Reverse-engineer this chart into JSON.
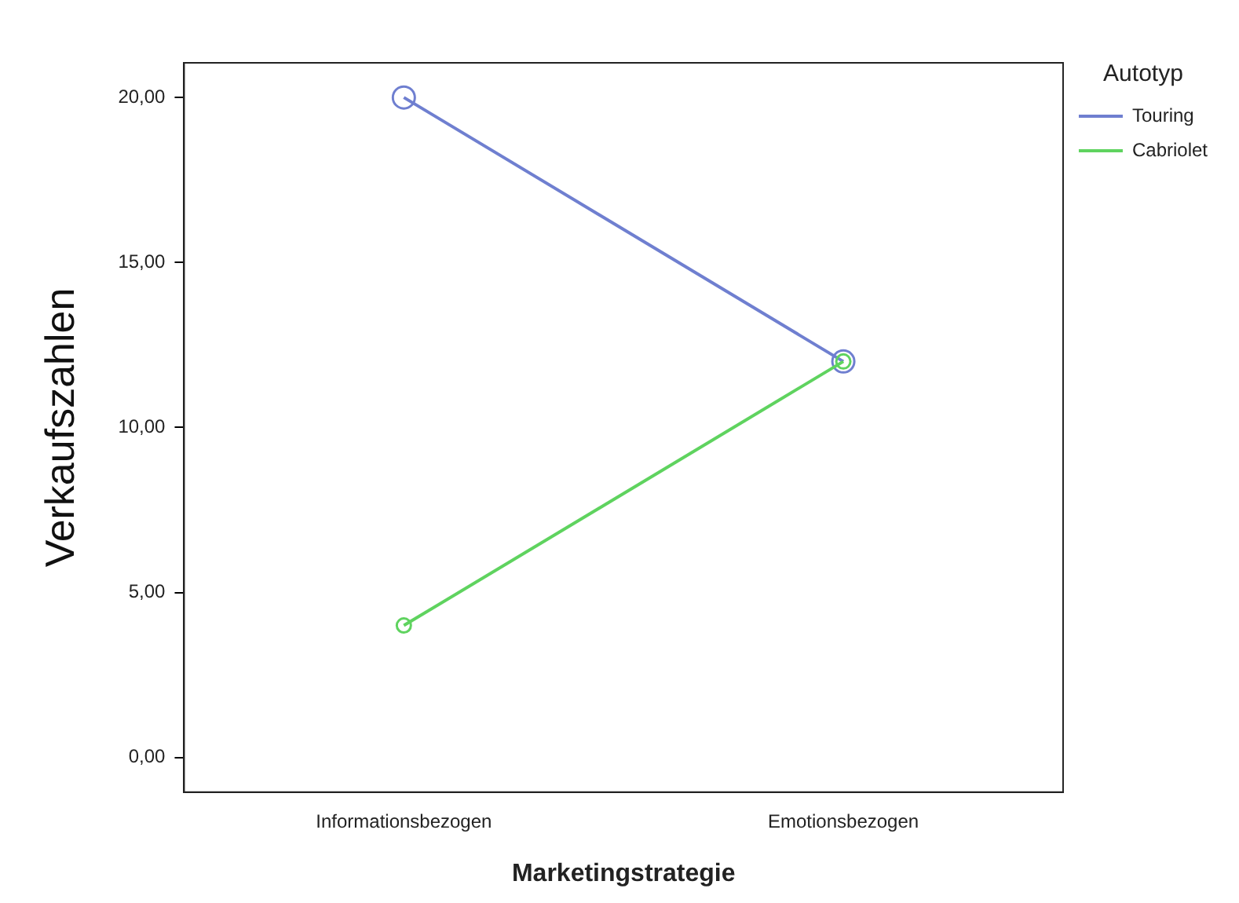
{
  "chart_data": {
    "type": "line",
    "xlabel": "Marketingstrategie",
    "ylabel": "Verkaufszahlen",
    "legend_title": "Autotyp",
    "legend": "top right",
    "marker": "circle",
    "grid": false,
    "categories": [
      "Informationsbezogen",
      "Emotionsbezogen"
    ],
    "series": [
      {
        "name": "Touring",
        "color": "#6f7fd0",
        "values": [
          20,
          12
        ]
      },
      {
        "name": "Cabriolet",
        "color": "#5fd35f",
        "values": [
          4,
          12
        ]
      }
    ],
    "ylim": [
      -1.05,
      21.05
    ],
    "yticks": [
      {
        "value": 0,
        "label": "0,00"
      },
      {
        "value": 5,
        "label": "5,00"
      },
      {
        "value": 10,
        "label": "10,00"
      },
      {
        "value": 15,
        "label": "15,00"
      },
      {
        "value": 20,
        "label": "20,00"
      }
    ]
  }
}
